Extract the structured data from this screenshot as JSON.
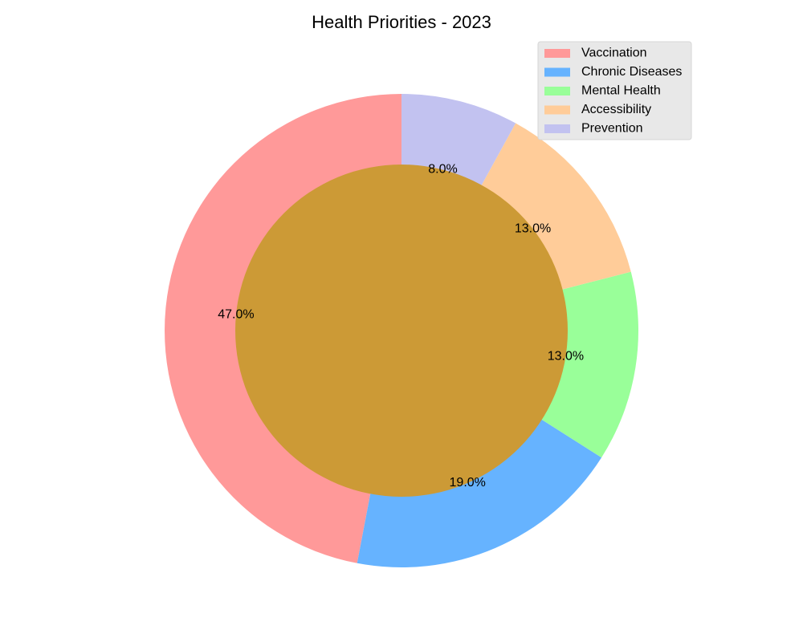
{
  "chart_data": {
    "type": "pie",
    "style": "donut",
    "title": "Health Priorities - 2023",
    "categories": [
      "Vaccination",
      "Chronic Diseases",
      "Mental Health",
      "Accessibility",
      "Prevention"
    ],
    "values": [
      47.0,
      19.0,
      13.0,
      13.0,
      8.0
    ],
    "value_labels": [
      "47.0%",
      "19.0%",
      "13.0%",
      "13.0%",
      "8.0%"
    ],
    "colors": [
      "#ff9999",
      "#66b3ff",
      "#99ff99",
      "#ffcc99",
      "#c2c2f0"
    ],
    "center_color": "#cc9a36",
    "start_angle_deg": 90,
    "direction": "counterclockwise",
    "legend": {
      "position": "top-right",
      "entries": [
        "Vaccination",
        "Chronic Diseases",
        "Mental Health",
        "Accessibility",
        "Prevention"
      ]
    }
  }
}
